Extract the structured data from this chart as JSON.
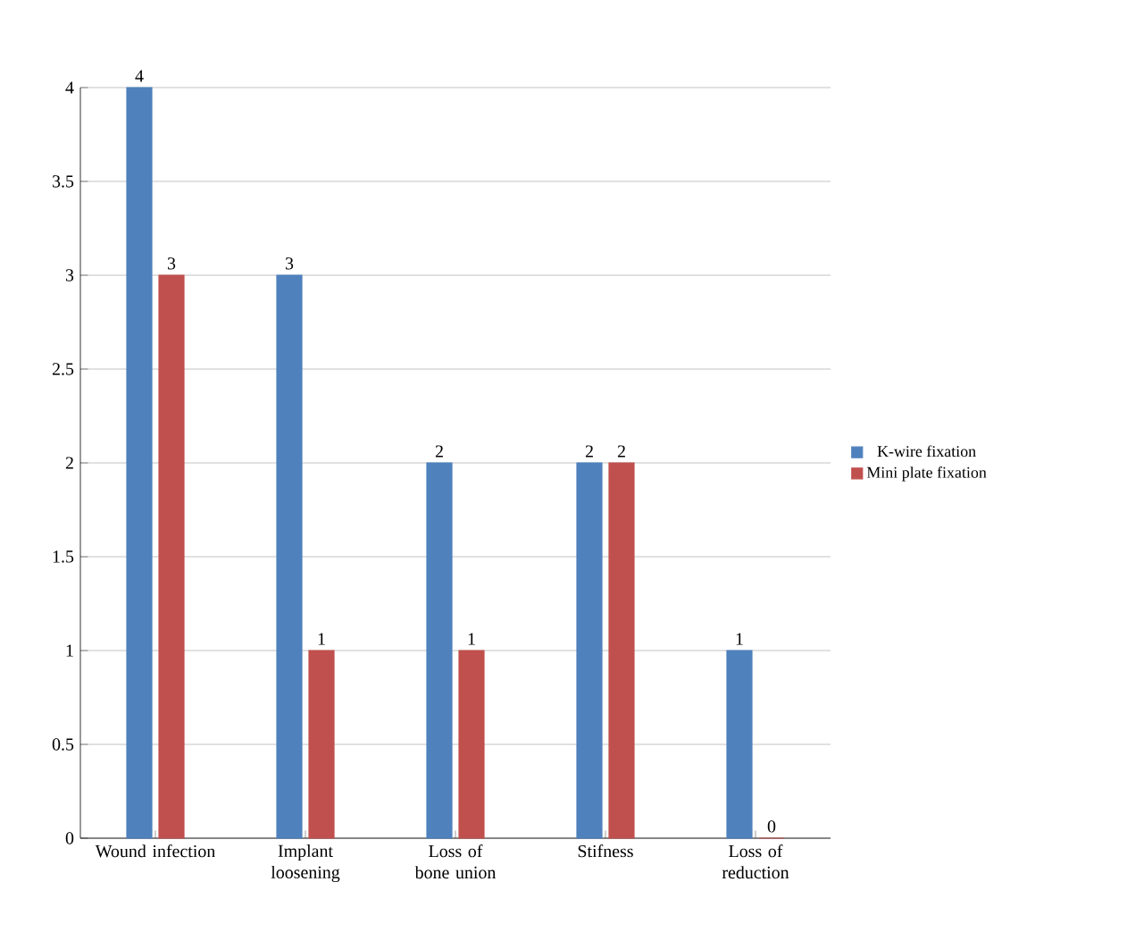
{
  "chart_data": {
    "type": "bar",
    "categories": [
      "Wound infection",
      "Implant loosening",
      "Loss of bone union",
      "Stifness",
      "Loss of reduction"
    ],
    "series": [
      {
        "name": "K-wire fixation",
        "color": "#4f81bd",
        "values": [
          4,
          3,
          2,
          2,
          1
        ]
      },
      {
        "name": "Mini plate fixation",
        "color": "#c0504d",
        "values": [
          3,
          1,
          1,
          2,
          0
        ]
      }
    ],
    "ylim": [
      0,
      4
    ],
    "yticks": [
      0,
      0.5,
      1,
      1.5,
      2,
      2.5,
      3,
      3.5,
      4
    ],
    "grid": "y",
    "legend": "right",
    "data_labels": true
  }
}
